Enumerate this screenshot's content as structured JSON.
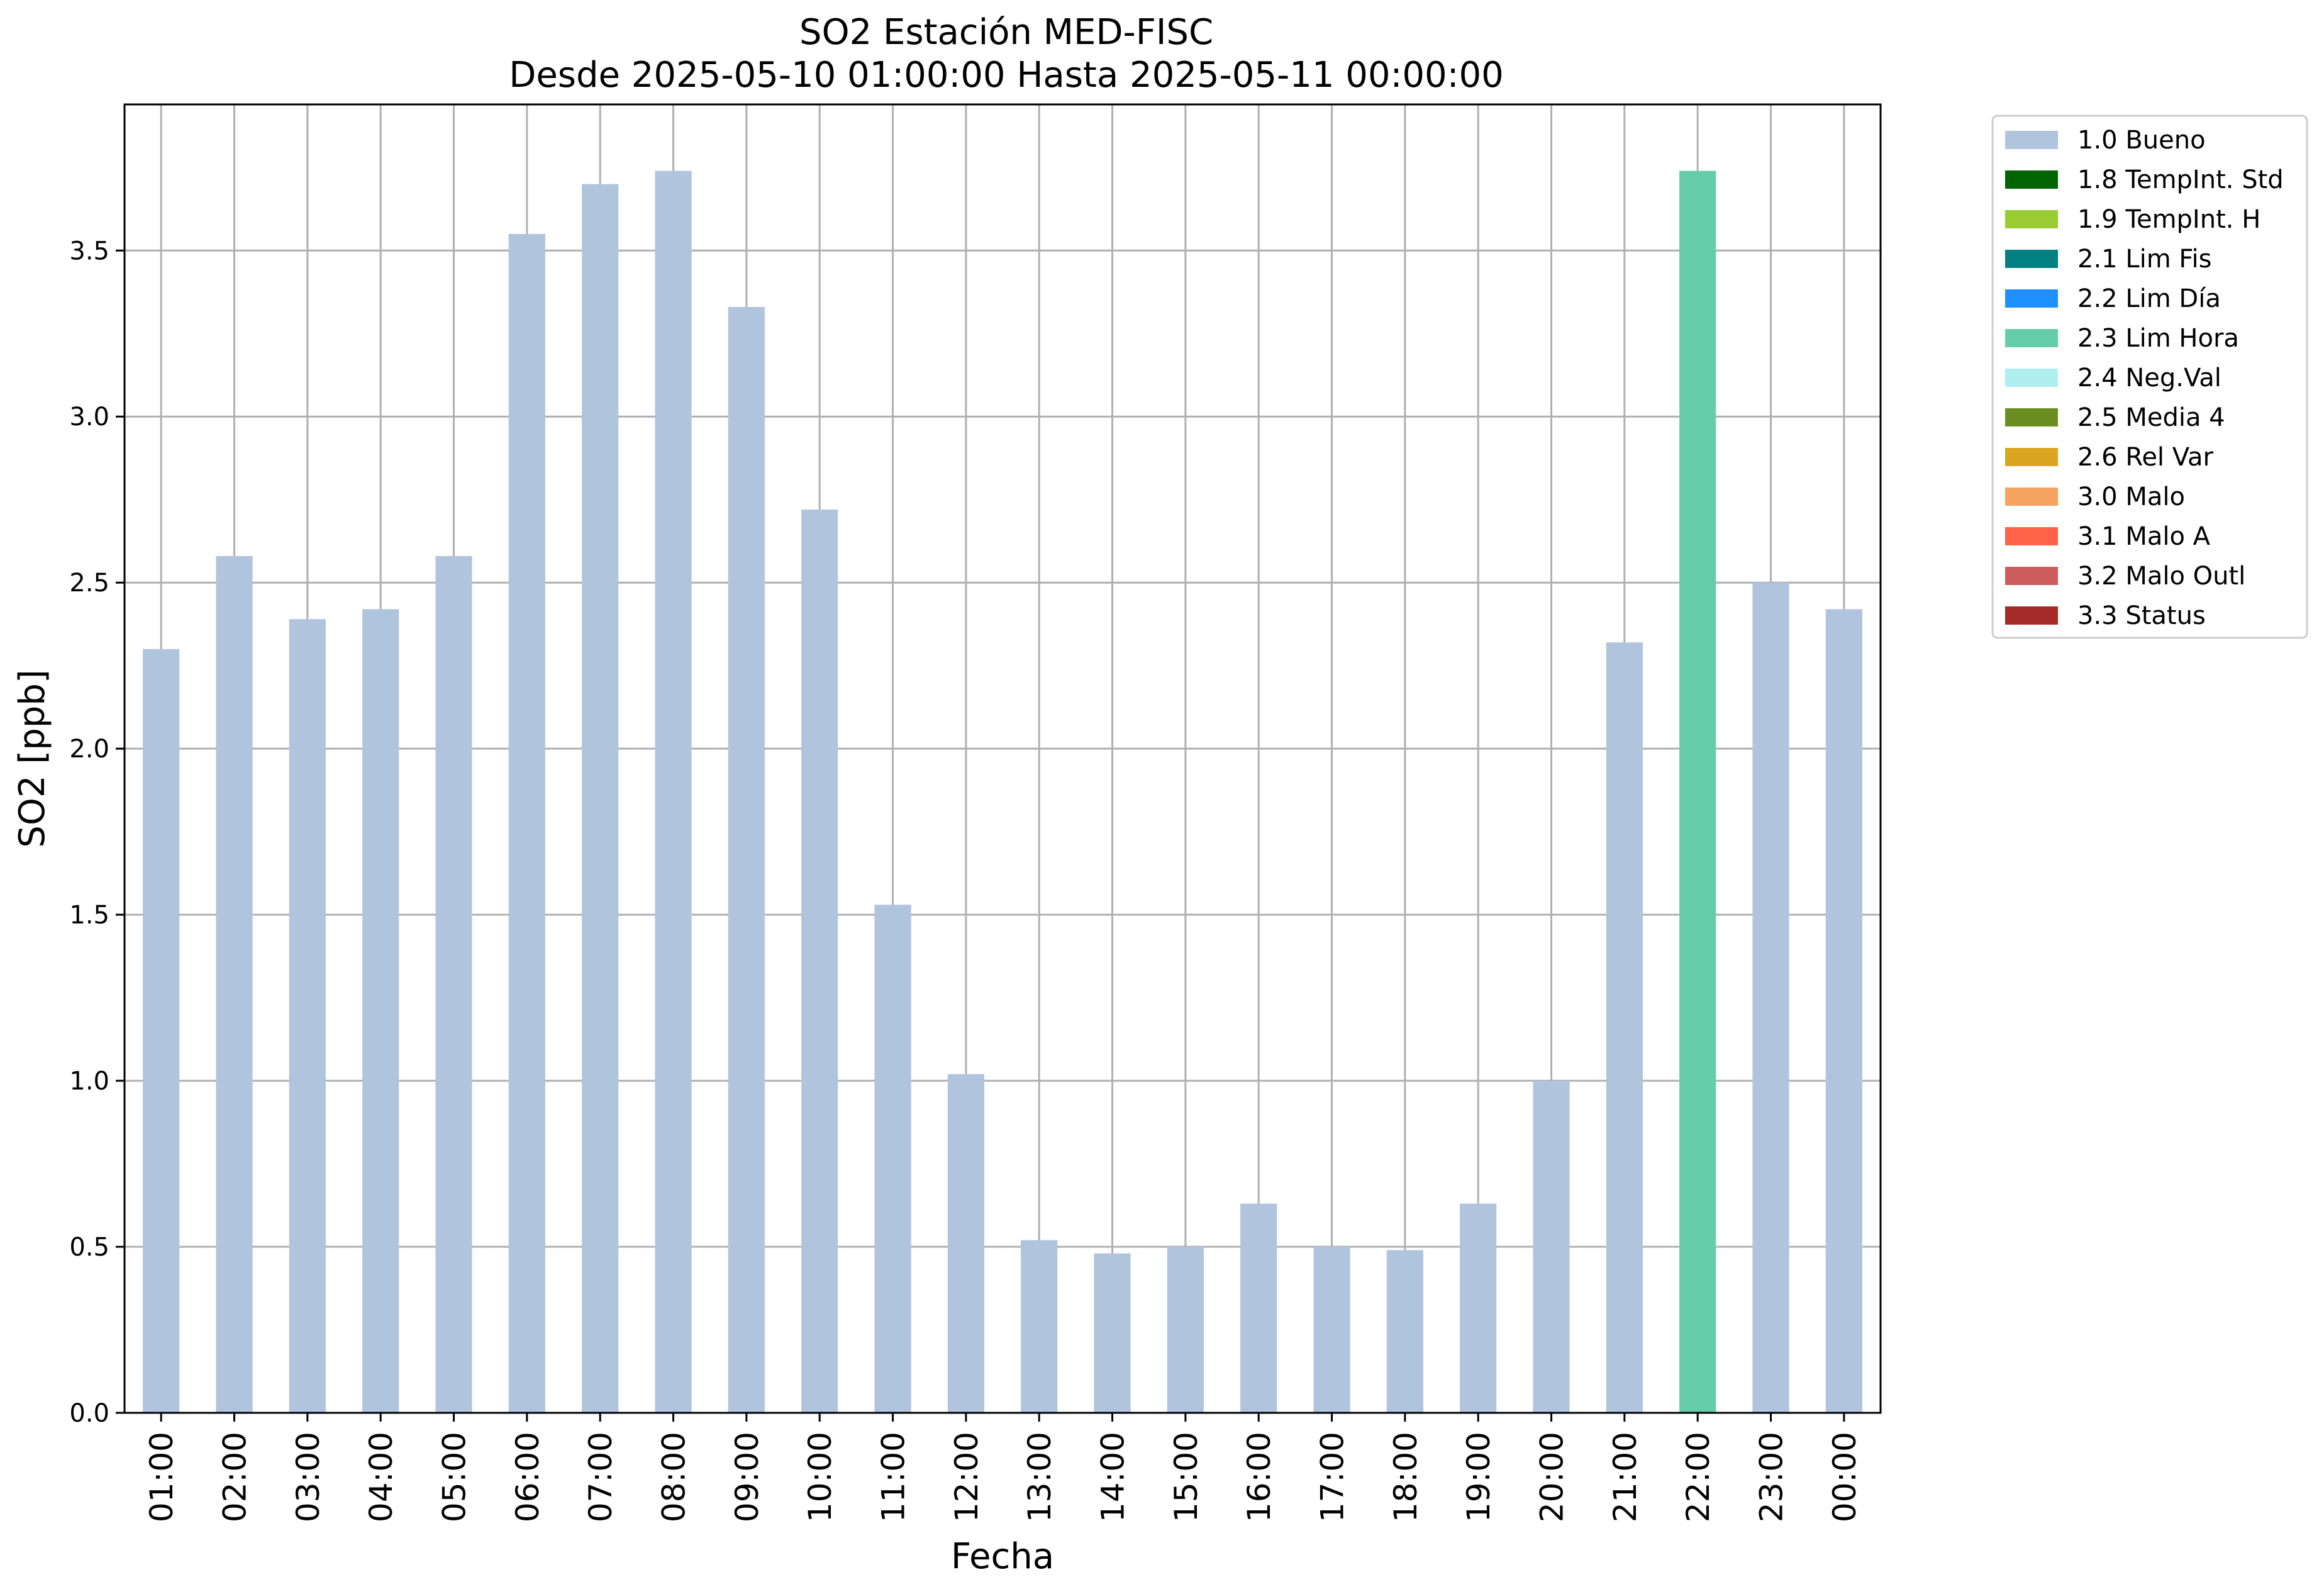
{
  "chart_data": {
    "type": "bar",
    "title_line1": "SO2 Estación MED-FISC",
    "title_line2": "Desde 2025-05-10 01:00:00 Hasta 2025-05-11 00:00:00",
    "xlabel": "Fecha",
    "ylabel": "SO2 [ppb]",
    "ylim": [
      0,
      3.94
    ],
    "yticks": [
      "0.0",
      "0.5",
      "1.0",
      "1.5",
      "2.0",
      "2.5",
      "3.0",
      "3.5"
    ],
    "grid": true,
    "legend_position": "outside-top-right",
    "categories": [
      "01:00",
      "02:00",
      "03:00",
      "04:00",
      "05:00",
      "06:00",
      "07:00",
      "08:00",
      "09:00",
      "10:00",
      "11:00",
      "12:00",
      "13:00",
      "14:00",
      "15:00",
      "16:00",
      "17:00",
      "18:00",
      "19:00",
      "20:00",
      "21:00",
      "22:00",
      "23:00",
      "00:00"
    ],
    "values": [
      2.3,
      2.58,
      2.39,
      2.42,
      2.58,
      3.55,
      3.7,
      3.74,
      3.33,
      2.72,
      1.53,
      1.02,
      0.52,
      0.48,
      0.5,
      0.63,
      0.5,
      0.49,
      0.63,
      1.0,
      2.32,
      3.74,
      2.5,
      2.42
    ],
    "flags": [
      "1.0 Bueno",
      "1.0 Bueno",
      "1.0 Bueno",
      "1.0 Bueno",
      "1.0 Bueno",
      "1.0 Bueno",
      "1.0 Bueno",
      "1.0 Bueno",
      "1.0 Bueno",
      "1.0 Bueno",
      "1.0 Bueno",
      "1.0 Bueno",
      "1.0 Bueno",
      "1.0 Bueno",
      "1.0 Bueno",
      "1.0 Bueno",
      "1.0 Bueno",
      "1.0 Bueno",
      "1.0 Bueno",
      "1.0 Bueno",
      "1.0 Bueno",
      "2.3 Lim Hora",
      "1.0 Bueno",
      "1.0 Bueno"
    ],
    "legend": [
      {
        "label": "1.0 Bueno",
        "color": "#b0c4de"
      },
      {
        "label": "1.8 TempInt. Std",
        "color": "#006400"
      },
      {
        "label": "1.9 TempInt. H",
        "color": "#9acd32"
      },
      {
        "label": "2.1 Lim Fis",
        "color": "#008080"
      },
      {
        "label": "2.2 Lim Día",
        "color": "#1e90ff"
      },
      {
        "label": "2.3 Lim Hora",
        "color": "#66cdaa"
      },
      {
        "label": "2.4 Neg.Val",
        "color": "#afeeee"
      },
      {
        "label": "2.5 Media 4",
        "color": "#6b8e23"
      },
      {
        "label": "2.6 Rel Var",
        "color": "#daa520"
      },
      {
        "label": "3.0 Malo",
        "color": "#f4a460"
      },
      {
        "label": "3.1 Malo A",
        "color": "#ff6347"
      },
      {
        "label": "3.2 Malo Outl",
        "color": "#cd5c5c"
      },
      {
        "label": "3.3 Status",
        "color": "#a52a2a"
      }
    ]
  }
}
